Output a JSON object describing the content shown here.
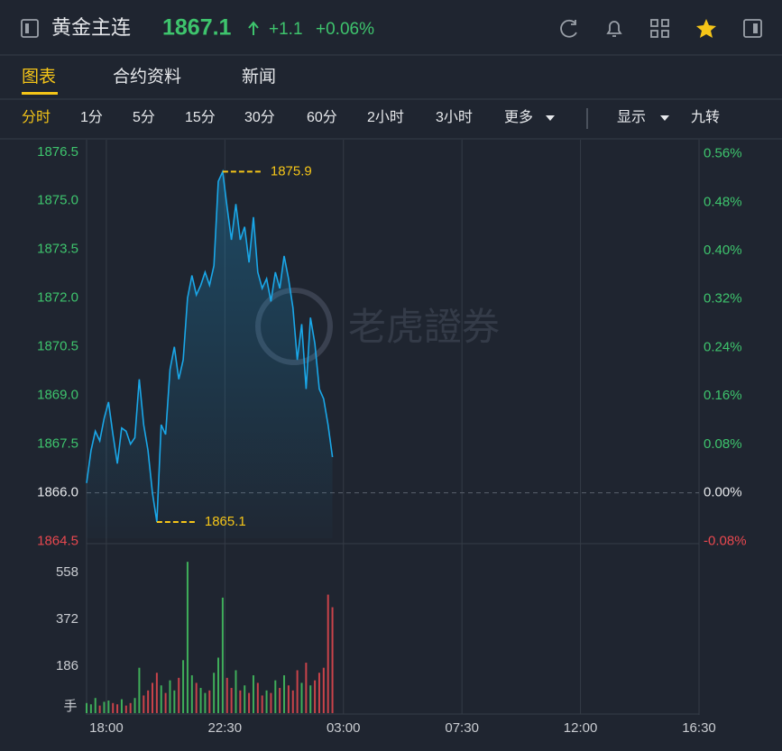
{
  "header": {
    "title": "黄金主连",
    "price": 1867.1,
    "change": "+1.1",
    "change_pct": "+0.06%"
  },
  "tabs": [
    "图表",
    "合约资料",
    "新闻"
  ],
  "intervals": [
    "分时",
    "1分",
    "5分",
    "15分",
    "30分",
    "60分",
    "2小时",
    "3小时",
    "更多"
  ],
  "display": "显示",
  "nine_turn": "九转",
  "watermark": "老虎證券",
  "chart_data": [
    {
      "type": "line",
      "color": "#1aa7e8",
      "reference": 1866,
      "high": 1875.9,
      "low": 1865.1,
      "x": [
        "17:15",
        "17:25",
        "17:35",
        "17:45",
        "17:55",
        "18:05",
        "18:15",
        "18:25",
        "18:35",
        "18:45",
        "18:55",
        "19:05",
        "19:15",
        "19:25",
        "19:35",
        "19:45",
        "19:55",
        "20:05",
        "20:15",
        "20:25",
        "20:35",
        "20:45",
        "20:55",
        "21:05",
        "21:15",
        "21:25",
        "21:35",
        "21:45",
        "21:55",
        "22:05",
        "22:15",
        "22:25",
        "22:35",
        "22:45",
        "22:55",
        "23:05",
        "23:15",
        "23:25",
        "23:35",
        "23:45",
        "23:55",
        "00:05",
        "00:15",
        "00:25",
        "00:35",
        "00:45",
        "00:55",
        "01:05",
        "01:15",
        "01:25",
        "01:35",
        "01:45",
        "01:55",
        "02:05",
        "02:15",
        "02:25",
        "02:35"
      ],
      "values": [
        1866.3,
        1867.3,
        1867.9,
        1867.6,
        1868.3,
        1868.8,
        1867.8,
        1866.9,
        1868.0,
        1867.9,
        1867.5,
        1867.7,
        1869.5,
        1868.1,
        1867.3,
        1866.0,
        1865.1,
        1868.1,
        1867.8,
        1869.8,
        1870.5,
        1869.5,
        1870.1,
        1872.0,
        1872.7,
        1872.1,
        1872.4,
        1872.8,
        1872.4,
        1873.0,
        1875.6,
        1875.9,
        1874.8,
        1873.8,
        1874.9,
        1873.8,
        1874.2,
        1873.1,
        1874.5,
        1872.8,
        1872.3,
        1872.6,
        1871.9,
        1872.8,
        1872.3,
        1873.3,
        1872.6,
        1871.7,
        1870.1,
        1871.2,
        1869.2,
        1871.4,
        1870.6,
        1869.2,
        1868.9,
        1868.1,
        1867.1
      ],
      "xlim": [
        "17:15",
        "16:30"
      ],
      "ylim": [
        1864.6,
        1876.8
      ],
      "yticks": [
        1876.5,
        {
          "value": 1875,
          "label": "1875.0"
        },
        1873.5,
        {
          "value": 1872,
          "label": "1872.0"
        },
        1870.5,
        {
          "value": 1869,
          "label": "1869.0"
        },
        1867.5,
        {
          "value": 1866,
          "label": "1866.0"
        },
        1864.5
      ],
      "y2lim": [
        -0.075,
        0.5788
      ],
      "y2ticks": [
        {
          "value": 0.56,
          "label": "0.56%"
        },
        {
          "value": 0.48,
          "label": "0.48%"
        },
        {
          "value": 0.4,
          "label": "0.40%"
        },
        {
          "value": 0.32,
          "label": "0.32%"
        },
        {
          "value": 0.24,
          "label": "0.24%"
        },
        {
          "value": 0.16,
          "label": "0.16%"
        },
        {
          "value": 0.08,
          "label": "0.08%"
        },
        {
          "value": 0,
          "label": "0.00%"
        },
        {
          "value": -0.08,
          "label": "-0.08%"
        }
      ]
    },
    {
      "type": "bar",
      "y_label": "手",
      "up_color": "#3fae5a",
      "down_color": "#c9434a",
      "x": [
        "17:15",
        "17:25",
        "17:35",
        "17:45",
        "17:55",
        "18:05",
        "18:15",
        "18:25",
        "18:35",
        "18:45",
        "18:55",
        "19:05",
        "19:15",
        "19:25",
        "19:35",
        "19:45",
        "19:55",
        "20:05",
        "20:15",
        "20:25",
        "20:35",
        "20:45",
        "20:55",
        "21:05",
        "21:15",
        "21:25",
        "21:35",
        "21:45",
        "21:55",
        "22:05",
        "22:15",
        "22:25",
        "22:35",
        "22:45",
        "22:55",
        "23:05",
        "23:15",
        "23:25",
        "23:35",
        "23:45",
        "23:55",
        "00:05",
        "00:15",
        "00:25",
        "00:35",
        "00:45",
        "00:55",
        "01:05",
        "01:15",
        "01:25",
        "01:35",
        "01:45",
        "01:55",
        "02:05",
        "02:15",
        "02:25",
        "02:35"
      ],
      "values": [
        40,
        35,
        60,
        30,
        45,
        50,
        40,
        35,
        55,
        30,
        40,
        60,
        180,
        70,
        90,
        120,
        160,
        110,
        80,
        130,
        90,
        140,
        210,
        600,
        150,
        120,
        100,
        80,
        90,
        160,
        220,
        458,
        140,
        100,
        170,
        90,
        110,
        80,
        150,
        120,
        70,
        90,
        80,
        130,
        100,
        150,
        110,
        90,
        170,
        120,
        200,
        110,
        130,
        160,
        180,
        470,
        420
      ],
      "xlim": [
        "17:15",
        "16:30"
      ],
      "xticks": [
        "18:00",
        "22:30",
        "03:00",
        "07:30",
        "12:00",
        "16:30"
      ],
      "ylim": [
        0,
        665
      ],
      "yticks": [
        186,
        372,
        558
      ]
    }
  ]
}
